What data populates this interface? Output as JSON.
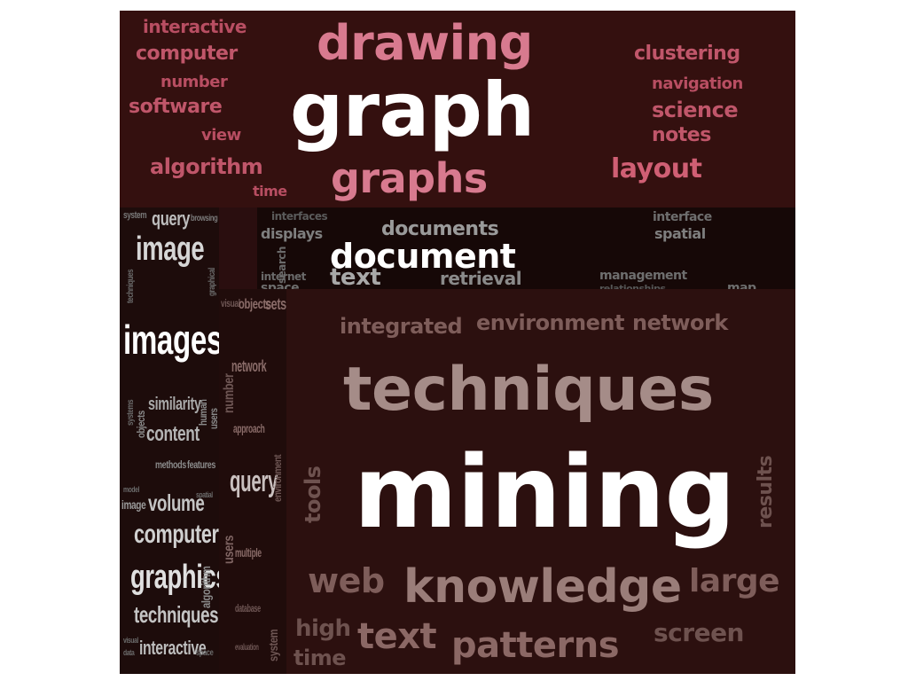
{
  "panels": [
    {
      "id": "top",
      "color": "#cf6b80",
      "words": [
        {
          "text": "interactive",
          "size": 20
        },
        {
          "text": "drawing",
          "size": 54
        },
        {
          "text": "computer",
          "size": 22
        },
        {
          "text": "clustering",
          "size": 22
        },
        {
          "text": "number",
          "size": 18
        },
        {
          "text": "navigation",
          "size": 18
        },
        {
          "text": "software",
          "size": 22
        },
        {
          "text": "graph",
          "size": 84
        },
        {
          "text": "science",
          "size": 24
        },
        {
          "text": "view",
          "size": 18
        },
        {
          "text": "notes",
          "size": 22
        },
        {
          "text": "algorithm",
          "size": 24
        },
        {
          "text": "layout",
          "size": 30
        },
        {
          "text": "graphs",
          "size": 46
        },
        {
          "text": "time",
          "size": 16
        }
      ]
    },
    {
      "id": "band",
      "color": "#8f8f8f",
      "words": [
        {
          "text": "interfaces",
          "size": 12
        },
        {
          "text": "interface",
          "size": 14
        },
        {
          "text": "displays",
          "size": 16
        },
        {
          "text": "documents",
          "size": 22
        },
        {
          "text": "spatial",
          "size": 16
        },
        {
          "text": "search",
          "size": 12
        },
        {
          "text": "document",
          "size": 38
        },
        {
          "text": "internet",
          "size": 12
        },
        {
          "text": "text",
          "size": 26
        },
        {
          "text": "retrieval",
          "size": 20
        },
        {
          "text": "management",
          "size": 14
        },
        {
          "text": "space",
          "size": 14
        },
        {
          "text": "relationships",
          "size": 11
        },
        {
          "text": "map",
          "size": 14
        }
      ]
    },
    {
      "id": "left",
      "color": "#c8c8c8",
      "words": [
        {
          "text": "system",
          "size": 11
        },
        {
          "text": "query",
          "size": 22
        },
        {
          "text": "browsing",
          "size": 10
        },
        {
          "text": "techniques",
          "size": 10
        },
        {
          "text": "image",
          "size": 38
        },
        {
          "text": "graphical",
          "size": 10
        },
        {
          "text": "images",
          "size": 46
        },
        {
          "text": "systems",
          "size": 10
        },
        {
          "text": "objects",
          "size": 12
        },
        {
          "text": "similarity",
          "size": 20
        },
        {
          "text": "human",
          "size": 12
        },
        {
          "text": "content",
          "size": 24
        },
        {
          "text": "users",
          "size": 12
        },
        {
          "text": "methods",
          "size": 12
        },
        {
          "text": "features",
          "size": 12
        },
        {
          "text": "model",
          "size": 9
        },
        {
          "text": "image",
          "size": 14
        },
        {
          "text": "volume",
          "size": 26
        },
        {
          "text": "spatial",
          "size": 9
        },
        {
          "text": "computer",
          "size": 30
        },
        {
          "text": "graphics",
          "size": 38
        },
        {
          "text": "algorithm",
          "size": 14
        },
        {
          "text": "techniques",
          "size": 26
        },
        {
          "text": "visual",
          "size": 9
        },
        {
          "text": "interactive",
          "size": 22
        },
        {
          "text": "data",
          "size": 9
        },
        {
          "text": "space",
          "size": 10
        }
      ]
    },
    {
      "id": "mid",
      "color": "#a37c7a",
      "words": [
        {
          "text": "visual",
          "size": 12
        },
        {
          "text": "objects",
          "size": 16
        },
        {
          "text": "sets",
          "size": 18
        },
        {
          "text": "network",
          "size": 18
        },
        {
          "text": "number",
          "size": 16
        },
        {
          "text": "approach",
          "size": 14
        },
        {
          "text": "query",
          "size": 34
        },
        {
          "text": "environment",
          "size": 12
        },
        {
          "text": "users",
          "size": 16
        },
        {
          "text": "multiple",
          "size": 14
        },
        {
          "text": "database",
          "size": 12
        },
        {
          "text": "evaluation",
          "size": 10
        },
        {
          "text": "system",
          "size": 14
        }
      ]
    },
    {
      "id": "main",
      "color": "#8b6865",
      "words": [
        {
          "text": "integrated",
          "size": 24
        },
        {
          "text": "environment",
          "size": 24
        },
        {
          "text": "network",
          "size": 24
        },
        {
          "text": "techniques",
          "size": 68
        },
        {
          "text": "tools",
          "size": 24
        },
        {
          "text": "mining",
          "size": 112
        },
        {
          "text": "results",
          "size": 22
        },
        {
          "text": "web",
          "size": 38
        },
        {
          "text": "knowledge",
          "size": 52
        },
        {
          "text": "large",
          "size": 36
        },
        {
          "text": "high",
          "size": 26
        },
        {
          "text": "text",
          "size": 40
        },
        {
          "text": "patterns",
          "size": 40
        },
        {
          "text": "screen",
          "size": 28
        },
        {
          "text": "time",
          "size": 24
        }
      ]
    }
  ]
}
